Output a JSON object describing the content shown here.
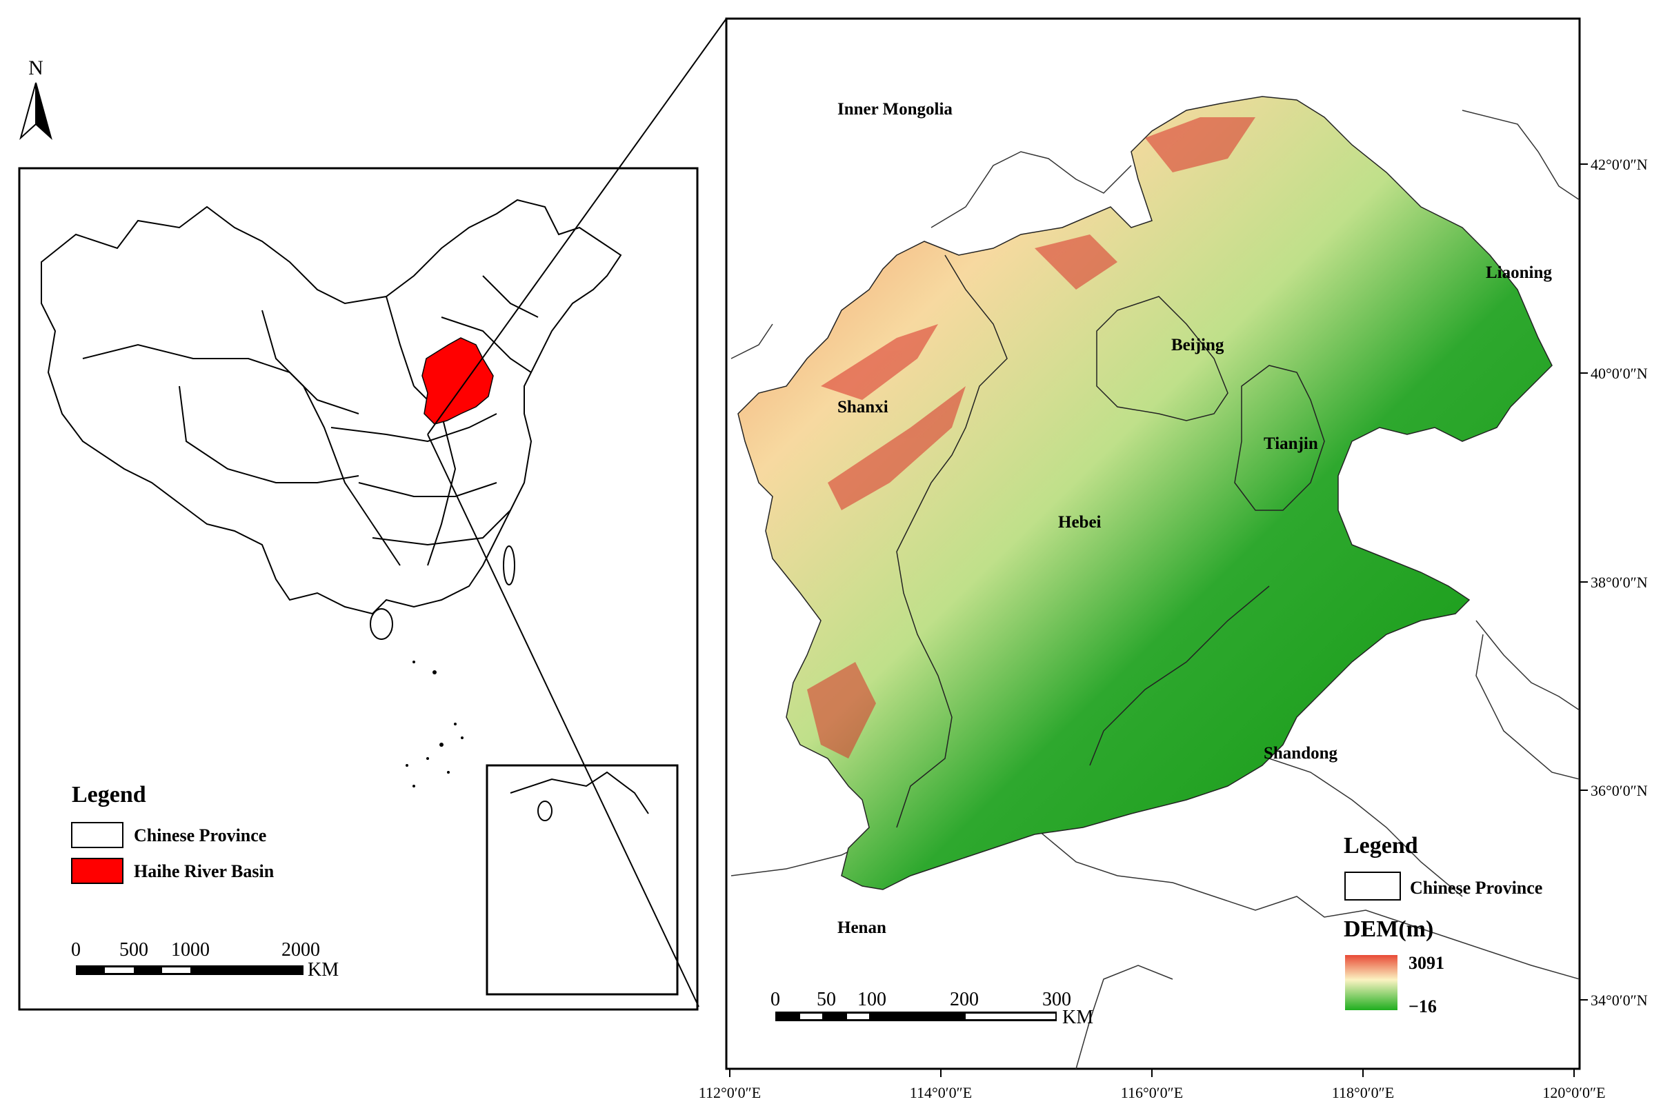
{
  "north_arrow": {
    "label": "N"
  },
  "inset_left": {
    "legend_title": "Legend",
    "legend_items": [
      {
        "label": "Chinese Province",
        "color": "#ffffff"
      },
      {
        "label": "Haihe River Basin",
        "color": "#ff0000"
      }
    ],
    "scale_labels": [
      "0",
      "500",
      "1000",
      "2000"
    ],
    "scale_unit": "KM"
  },
  "main_map": {
    "place_labels": {
      "inner_mongolia": "Inner Mongolia",
      "liaoning": "Liaoning",
      "beijing": "Beijing",
      "shanxi": "Shanxi",
      "tianjin": "Tianjin",
      "hebei": "Hebei",
      "shandong": "Shandong",
      "henan": "Henan"
    },
    "lat_ticks": [
      "42°0′0″N",
      "40°0′0″N",
      "38°0′0″N",
      "36°0′0″N",
      "34°0′0″N"
    ],
    "lon_ticks": [
      "112°0′0″E",
      "114°0′0″E",
      "116°0′0″E",
      "118°0′0″E",
      "120°0′0″E"
    ],
    "legend_title": "Legend",
    "legend_province": "Chinese Province",
    "dem_title": "DEM(m)",
    "dem_max": "3091",
    "dem_min": "−16",
    "dem_colors": {
      "high": "#e8503a",
      "mid": "#fbf3c2",
      "low": "#2ab52a"
    },
    "scale_labels": [
      "0",
      "50",
      "100",
      "200",
      "300"
    ],
    "scale_unit": "KM"
  }
}
